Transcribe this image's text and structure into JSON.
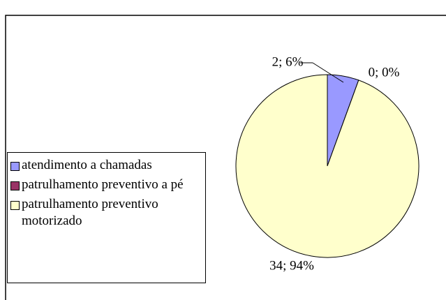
{
  "chart_data": {
    "type": "pie",
    "categories": [
      "atendimento a chamadas",
      "patrulhamento preventivo a pé",
      "patrulhamento preventivo motorizado"
    ],
    "values": [
      2,
      0,
      34
    ],
    "value_labels": [
      "2; 6%",
      "0; 0%",
      "34; 94%"
    ],
    "colors": [
      "#9999ff",
      "#993366",
      "#ffffcc"
    ],
    "legend": "left"
  }
}
